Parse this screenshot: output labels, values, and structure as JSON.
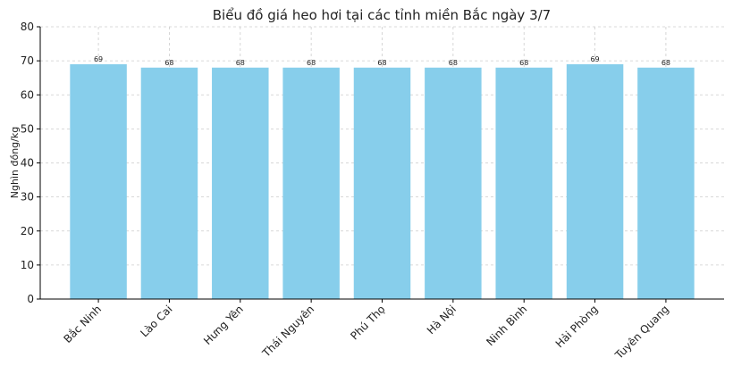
{
  "chart_data": {
    "type": "bar",
    "title": "Biểu đồ giá heo hơi tại các tỉnh miền Bắc ngày 3/7",
    "y_label": "Nghìn đồng/kg",
    "categories": [
      "Bắc Ninh",
      "Lào Cai",
      "Hưng Yên",
      "Thái Nguyên",
      "Phú Thọ",
      "Hà Nội",
      "Ninh Bình",
      "Hải Phòng",
      "Tuyên Quang"
    ],
    "values": [
      69,
      68,
      68,
      68,
      68,
      68,
      68,
      69,
      68
    ],
    "color": "#87ceeb",
    "ylim": [
      0,
      80
    ],
    "yticks": [
      0,
      10,
      20,
      30,
      40,
      50,
      60,
      70,
      80
    ],
    "grid": true
  }
}
